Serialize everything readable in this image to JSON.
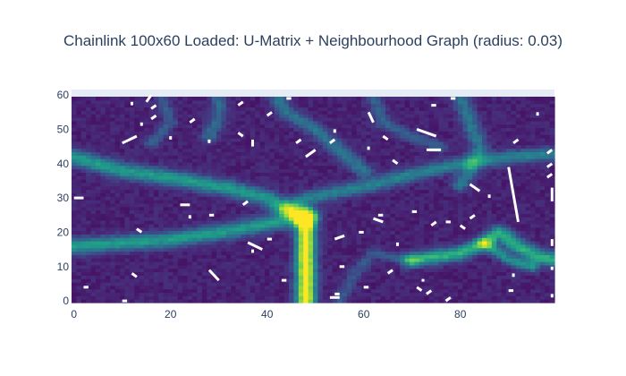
{
  "chart_data": {
    "type": "heatmap",
    "title": "Chainlink 100x60 Loaded: U-Matrix + Neighbourhood Graph (radius: 0.03)",
    "xlabel": "",
    "ylabel": "",
    "xlim": [
      -0.5,
      99.5
    ],
    "ylim": [
      -0.5,
      59.5
    ],
    "x_ticks": [
      0,
      20,
      40,
      60,
      80
    ],
    "y_ticks": [
      0,
      10,
      20,
      30,
      40,
      50,
      60
    ],
    "colorscale": [
      "#440154",
      "#482878",
      "#3e4989",
      "#31688e",
      "#26828e",
      "#1f9e89",
      "#35b779",
      "#6ece58",
      "#b5de2b",
      "#fde725"
    ],
    "grid_size": [
      100,
      60
    ],
    "ridges": [
      {
        "points": [
          [
            0,
            42
          ],
          [
            10,
            38
          ],
          [
            20,
            36
          ],
          [
            32,
            33
          ],
          [
            40,
            30
          ],
          [
            44,
            27
          ],
          [
            48,
            24
          ]
        ],
        "width": 1.6,
        "strength": 0.45
      },
      {
        "points": [
          [
            0,
            16
          ],
          [
            10,
            17
          ],
          [
            20,
            18
          ],
          [
            30,
            20
          ],
          [
            38,
            22
          ],
          [
            45,
            24
          ],
          [
            48,
            26
          ]
        ],
        "width": 1.6,
        "strength": 0.45
      },
      {
        "points": [
          [
            48,
            24
          ],
          [
            48,
            16
          ],
          [
            48,
            8
          ],
          [
            48,
            0
          ]
        ],
        "width": 1.4,
        "strength": 0.95
      },
      {
        "points": [
          [
            44,
            27
          ],
          [
            48,
            30
          ],
          [
            55,
            32
          ],
          [
            62,
            34
          ],
          [
            70,
            37
          ],
          [
            80,
            40
          ],
          [
            90,
            42
          ],
          [
            100,
            43
          ]
        ],
        "width": 1.4,
        "strength": 0.35
      },
      {
        "points": [
          [
            42,
            60
          ],
          [
            44,
            55
          ],
          [
            50,
            50
          ],
          [
            55,
            44
          ],
          [
            60,
            38
          ]
        ],
        "width": 1.3,
        "strength": 0.3
      },
      {
        "points": [
          [
            80,
            60
          ],
          [
            82,
            52
          ],
          [
            84,
            45
          ],
          [
            82,
            38
          ],
          [
            80,
            34
          ]
        ],
        "width": 1.3,
        "strength": 0.3
      },
      {
        "points": [
          [
            30,
            60
          ],
          [
            30,
            54
          ],
          [
            28,
            48
          ]
        ],
        "width": 1.2,
        "strength": 0.25
      },
      {
        "points": [
          [
            70,
            12
          ],
          [
            80,
            14
          ],
          [
            85,
            17
          ],
          [
            88,
            20
          ],
          [
            92,
            16
          ],
          [
            96,
            13
          ],
          [
            100,
            12
          ]
        ],
        "width": 1.4,
        "strength": 0.55
      },
      {
        "points": [
          [
            85,
            17
          ],
          [
            90,
            12
          ],
          [
            95,
            10
          ]
        ],
        "width": 1.0,
        "strength": 0.4
      },
      {
        "points": [
          [
            62,
            60
          ],
          [
            64,
            52
          ],
          [
            70,
            48
          ],
          [
            76,
            45
          ]
        ],
        "width": 1.1,
        "strength": 0.22
      },
      {
        "points": [
          [
            18,
            60
          ],
          [
            20,
            52
          ],
          [
            16,
            46
          ]
        ],
        "width": 1.0,
        "strength": 0.2
      },
      {
        "points": [
          [
            55,
            0
          ],
          [
            58,
            8
          ],
          [
            62,
            14
          ],
          [
            70,
            12
          ]
        ],
        "width": 1.0,
        "strength": 0.18
      }
    ],
    "graph_segments": [
      [
        [
          10,
          46
        ],
        [
          13,
          48
        ]
      ],
      [
        [
          12,
          57
        ],
        [
          12,
          58
        ]
      ],
      [
        [
          15,
          58
        ],
        [
          16,
          60
        ]
      ],
      [
        [
          16,
          56
        ],
        [
          17,
          57
        ]
      ],
      [
        [
          16,
          53
        ],
        [
          17,
          54
        ]
      ],
      [
        [
          14,
          51
        ],
        [
          14,
          52
        ]
      ],
      [
        [
          20,
          47
        ],
        [
          20,
          48
        ]
      ],
      [
        [
          24,
          52
        ],
        [
          25,
          53
        ]
      ],
      [
        [
          28,
          46
        ],
        [
          28,
          47
        ]
      ],
      [
        [
          34,
          57
        ],
        [
          35,
          58
        ]
      ],
      [
        [
          34,
          49
        ],
        [
          35,
          48
        ]
      ],
      [
        [
          37,
          45
        ],
        [
          37,
          47
        ]
      ],
      [
        [
          40,
          54
        ],
        [
          41,
          55
        ]
      ],
      [
        [
          44,
          59
        ],
        [
          45,
          59
        ]
      ],
      [
        [
          46,
          46
        ],
        [
          47,
          47
        ]
      ],
      [
        [
          48,
          42
        ],
        [
          50,
          44
        ]
      ],
      [
        [
          53,
          46
        ],
        [
          54,
          47
        ]
      ],
      [
        [
          54,
          49
        ],
        [
          54,
          50
        ]
      ],
      [
        [
          61,
          55
        ],
        [
          62,
          52
        ]
      ],
      [
        [
          61,
          44
        ],
        [
          61,
          45
        ]
      ],
      [
        [
          64,
          48
        ],
        [
          65,
          47
        ]
      ],
      [
        [
          66,
          41
        ],
        [
          67,
          40
        ]
      ],
      [
        [
          71,
          50
        ],
        [
          75,
          48
        ]
      ],
      [
        [
          73,
          44
        ],
        [
          76,
          44
        ]
      ],
      [
        [
          74,
          57
        ],
        [
          75,
          57
        ]
      ],
      [
        [
          78,
          59
        ],
        [
          79,
          59
        ]
      ],
      [
        [
          90,
          39
        ],
        [
          92,
          23
        ]
      ],
      [
        [
          82,
          34
        ],
        [
          84,
          32
        ]
      ],
      [
        [
          86,
          30
        ],
        [
          86,
          31
        ]
      ],
      [
        [
          91,
          46
        ],
        [
          92,
          47
        ]
      ],
      [
        [
          96,
          54
        ],
        [
          96,
          55
        ]
      ],
      [
        [
          98,
          43
        ],
        [
          99,
          44
        ]
      ],
      [
        [
          98,
          39
        ],
        [
          99,
          40
        ]
      ],
      [
        [
          98,
          36
        ],
        [
          99,
          37
        ]
      ],
      [
        [
          99,
          29
        ],
        [
          99,
          33
        ]
      ],
      [
        [
          99,
          16
        ],
        [
          99,
          18
        ]
      ],
      [
        [
          99,
          9
        ],
        [
          99,
          10
        ]
      ],
      [
        [
          91,
          7
        ],
        [
          91,
          8
        ]
      ],
      [
        [
          90,
          3
        ],
        [
          91,
          3
        ]
      ],
      [
        [
          99,
          1
        ],
        [
          99,
          2
        ]
      ],
      [
        [
          0,
          30
        ],
        [
          2,
          30
        ]
      ],
      [
        [
          2,
          4
        ],
        [
          3,
          4
        ]
      ],
      [
        [
          10,
          0
        ],
        [
          11,
          0
        ]
      ],
      [
        [
          12,
          8
        ],
        [
          13,
          7
        ]
      ],
      [
        [
          13,
          21
        ],
        [
          14,
          20
        ]
      ],
      [
        [
          22,
          28
        ],
        [
          24,
          28
        ]
      ],
      [
        [
          24,
          24
        ],
        [
          24,
          25
        ]
      ],
      [
        [
          28,
          25
        ],
        [
          29,
          25
        ]
      ],
      [
        [
          28,
          9
        ],
        [
          30,
          6
        ]
      ],
      [
        [
          35,
          28
        ],
        [
          36,
          29
        ]
      ],
      [
        [
          36,
          17
        ],
        [
          39,
          15
        ]
      ],
      [
        [
          37,
          15
        ],
        [
          37,
          14
        ]
      ],
      [
        [
          40,
          18
        ],
        [
          41,
          18
        ]
      ],
      [
        [
          43,
          6
        ],
        [
          44,
          6
        ]
      ],
      [
        [
          53,
          1
        ],
        [
          55,
          1
        ]
      ],
      [
        [
          54,
          18
        ],
        [
          56,
          19
        ]
      ],
      [
        [
          55,
          10
        ],
        [
          56,
          10
        ]
      ],
      [
        [
          59,
          20
        ],
        [
          60,
          20
        ]
      ],
      [
        [
          60,
          4
        ],
        [
          61,
          4
        ]
      ],
      [
        [
          62,
          24
        ],
        [
          64,
          23
        ]
      ],
      [
        [
          63,
          25
        ],
        [
          64,
          25
        ]
      ],
      [
        [
          65,
          8
        ],
        [
          66,
          9
        ]
      ],
      [
        [
          67,
          16
        ],
        [
          67,
          17
        ]
      ],
      [
        [
          70,
          26
        ],
        [
          71,
          26
        ]
      ],
      [
        [
          71,
          4
        ],
        [
          72,
          3
        ]
      ],
      [
        [
          72,
          6
        ],
        [
          72,
          6
        ]
      ],
      [
        [
          73,
          2
        ],
        [
          74,
          3
        ]
      ],
      [
        [
          74,
          22
        ],
        [
          75,
          23
        ]
      ],
      [
        [
          77,
          0
        ],
        [
          78,
          1
        ]
      ],
      [
        [
          77,
          23
        ],
        [
          78,
          23
        ]
      ],
      [
        [
          82,
          24
        ],
        [
          83,
          25
        ]
      ],
      [
        [
          54,
          2
        ],
        [
          55,
          2
        ]
      ],
      [
        [
          80,
          22
        ],
        [
          81,
          21
        ]
      ]
    ]
  }
}
